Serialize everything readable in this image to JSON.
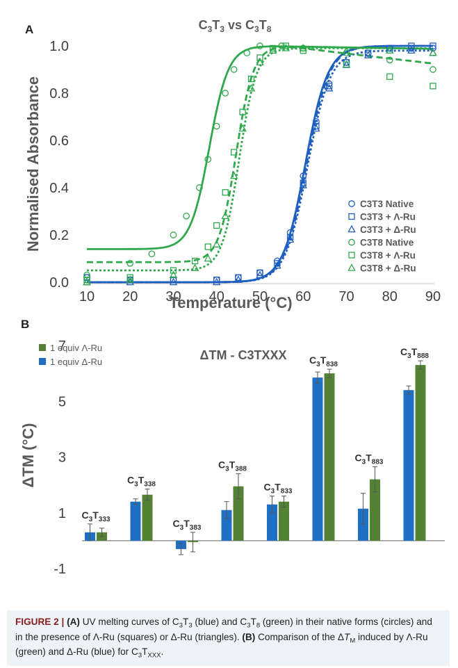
{
  "chart_data": [
    {
      "type": "line",
      "panel_label": "A",
      "title": "C3T3 vs C3T8",
      "title_parts": [
        {
          "t": "C",
          "s": ""
        },
        {
          "t": "3",
          "s": "sub"
        },
        {
          "t": "T",
          "s": ""
        },
        {
          "t": "3",
          "s": "sub"
        },
        {
          "t": " vs C",
          "s": ""
        },
        {
          "t": "3",
          "s": "sub"
        },
        {
          "t": "T",
          "s": ""
        },
        {
          "t": "8",
          "s": "sub"
        }
      ],
      "xlabel": "Temperature (°C)",
      "ylabel": "Normalised Absorbance",
      "xlim": [
        10,
        90
      ],
      "ylim": [
        0.0,
        1.0
      ],
      "xticks": [
        "10",
        "20",
        "30",
        "40",
        "50",
        "60",
        "70",
        "80",
        "90"
      ],
      "yticks": [
        "0.0",
        "0.2",
        "0.4",
        "0.6",
        "0.8",
        "1.0"
      ],
      "legend_position": "bottom-right",
      "series": [
        {
          "name": "C3T3 Native",
          "marker": "circle",
          "color": "#1f5fc0",
          "x": [
            10,
            20,
            30,
            40,
            45,
            50,
            54,
            57,
            60,
            63,
            66,
            70,
            75,
            80,
            85,
            90
          ],
          "y": [
            0.02,
            0.01,
            0.01,
            0.01,
            0.02,
            0.04,
            0.09,
            0.21,
            0.45,
            0.68,
            0.84,
            0.93,
            0.97,
            0.99,
            0.99,
            0.99
          ]
        },
        {
          "name": "C3T3 + Λ-Ru",
          "marker": "square",
          "color": "#1f5fc0",
          "x": [
            10,
            20,
            30,
            40,
            45,
            50,
            54,
            57,
            60,
            63,
            66,
            70,
            75,
            80,
            85,
            90
          ],
          "y": [
            0.02,
            0.01,
            0.01,
            0.01,
            0.02,
            0.04,
            0.08,
            0.19,
            0.42,
            0.66,
            0.83,
            0.93,
            0.97,
            0.99,
            1.0,
            1.0
          ]
        },
        {
          "name": "C3T3 + Δ-Ru",
          "marker": "triangle",
          "color": "#1f5fc0",
          "x": [
            10,
            20,
            30,
            40,
            45,
            50,
            54,
            57,
            60,
            63,
            66,
            70,
            75,
            80,
            85,
            90
          ],
          "y": [
            0.0,
            0.0,
            0.0,
            0.0,
            0.01,
            0.03,
            0.07,
            0.18,
            0.41,
            0.65,
            0.82,
            0.92,
            0.96,
            0.98,
            0.98,
            0.97
          ]
        },
        {
          "name": "C3T8 Native",
          "marker": "circle",
          "color": "#2ea84a",
          "x": [
            10,
            20,
            25,
            30,
            33,
            36,
            38,
            40,
            42,
            44,
            47,
            50,
            55,
            60,
            70,
            80,
            90
          ],
          "y": [
            0.03,
            0.08,
            0.12,
            0.2,
            0.28,
            0.4,
            0.52,
            0.66,
            0.8,
            0.9,
            0.97,
            1.0,
            1.0,
            0.99,
            0.97,
            0.94,
            0.9
          ]
        },
        {
          "name": "C3T8 + Λ-Ru",
          "marker": "square",
          "color": "#2ea84a",
          "x": [
            10,
            20,
            30,
            35,
            38,
            40,
            42,
            44,
            46,
            48,
            50,
            53,
            56,
            60,
            70,
            80,
            90
          ],
          "y": [
            0.01,
            0.02,
            0.05,
            0.09,
            0.15,
            0.24,
            0.38,
            0.55,
            0.72,
            0.86,
            0.95,
            0.99,
            1.0,
            0.98,
            0.92,
            0.87,
            0.83
          ]
        },
        {
          "name": "C3T8 + Δ-Ru",
          "marker": "triangle",
          "color": "#2ea84a",
          "x": [
            10,
            20,
            30,
            35,
            38,
            40,
            42,
            44,
            46,
            48,
            50,
            53,
            56,
            60,
            70,
            80,
            90
          ],
          "y": [
            0.0,
            0.01,
            0.03,
            0.06,
            0.1,
            0.16,
            0.28,
            0.45,
            0.65,
            0.82,
            0.93,
            0.98,
            0.99,
            0.99,
            0.98,
            0.98,
            0.97
          ]
        }
      ],
      "fits": [
        {
          "series": "C3T3 Native",
          "style": "solid",
          "color": "#1f5fc0",
          "base": 0.0,
          "top": 1.0,
          "tm": 60.5,
          "w": 2.6
        },
        {
          "series": "C3T3 + Λ-Ru",
          "style": "dashed",
          "color": "#1f5fc0",
          "base": 0.0,
          "top": 1.0,
          "tm": 60.8,
          "w": 2.6
        },
        {
          "series": "C3T3 + Δ-Ru",
          "style": "dotted",
          "color": "#1f5fc0",
          "base": 0.0,
          "top": 0.98,
          "tm": 61.0,
          "w": 2.6
        },
        {
          "series": "C3T8 Native",
          "style": "solid",
          "color": "#2ea84a",
          "base": 0.14,
          "top": 1.0,
          "tm": 38.3,
          "w": 2.2
        },
        {
          "series": "C3T8 + Λ-Ru",
          "style": "dashed",
          "color": "#2ea84a",
          "base": 0.085,
          "top": 1.0,
          "tm": 44.5,
          "w": 2.0
        },
        {
          "series": "C3T8 + Δ-Ru",
          "style": "dotted",
          "color": "#2ea84a",
          "base": 0.05,
          "top": 0.99,
          "tm": 45.2,
          "w": 2.0
        }
      ]
    },
    {
      "type": "bar",
      "panel_label": "B",
      "title": "ΔTM - C3TXXX",
      "ylabel": "ΔTM (°C)",
      "ylim": [
        -1,
        7
      ],
      "yticks": [
        "-1",
        "1",
        "3",
        "5",
        "7"
      ],
      "legend_position": "top-left",
      "categories": [
        "C3T333",
        "C3T338",
        "C3T383",
        "C3T388",
        "C3T833",
        "C3T838",
        "C3T883",
        "C3T888"
      ],
      "category_labels": [
        {
          "pre": "C",
          "a": "3",
          "mid": "T",
          "b": "333"
        },
        {
          "pre": "C",
          "a": "3",
          "mid": "T",
          "b": "338"
        },
        {
          "pre": "C",
          "a": "3",
          "mid": "T",
          "b": "383"
        },
        {
          "pre": "C",
          "a": "3",
          "mid": "T",
          "b": "388"
        },
        {
          "pre": "C",
          "a": "3",
          "mid": "T",
          "b": "833"
        },
        {
          "pre": "C",
          "a": "3",
          "mid": "T",
          "b": "838"
        },
        {
          "pre": "C",
          "a": "3",
          "mid": "T",
          "b": "883"
        },
        {
          "pre": "C",
          "a": "3",
          "mid": "T",
          "b": "888"
        }
      ],
      "series": [
        {
          "name": "1 equiv Δ-Ru",
          "color": "#1f6fc4",
          "values": [
            0.3,
            1.4,
            -0.3,
            1.1,
            1.3,
            5.85,
            1.15,
            5.4
          ],
          "errors": [
            0.3,
            0.1,
            0.2,
            0.3,
            0.3,
            0.2,
            0.55,
            0.15
          ]
        },
        {
          "name": "1 equiv Λ-Ru",
          "color": "#548235",
          "values": [
            0.3,
            1.65,
            -0.05,
            1.95,
            1.4,
            6.0,
            2.2,
            6.3
          ],
          "errors": [
            0.15,
            0.2,
            0.35,
            0.45,
            0.2,
            0.15,
            0.45,
            0.15
          ]
        }
      ]
    }
  ],
  "caption": {
    "label": "FIGURE 2 |",
    "part_a_label": "(A)",
    "part_b_label": "(B)",
    "text_a1": " UV melting curves of C",
    "sub1": "3",
    "text_a2": "T",
    "sub2": "3",
    "text_a3": " (blue) and C",
    "sub3": "3",
    "text_a4": "T",
    "sub4": "8",
    "text_a5": " (green) in their native forms (circles) and in the presence of Λ-Ru (squares) or Δ-Ru (triangles). ",
    "text_b1": " Comparison of the Δ",
    "tm_t": "T",
    "tm_sub": "M",
    "text_b2": " induced by Λ-Ru (green) and Δ-Ru (blue) for C",
    "sub5": "3",
    "text_b3": "T",
    "sub6": "XXX",
    "text_b4": "."
  }
}
